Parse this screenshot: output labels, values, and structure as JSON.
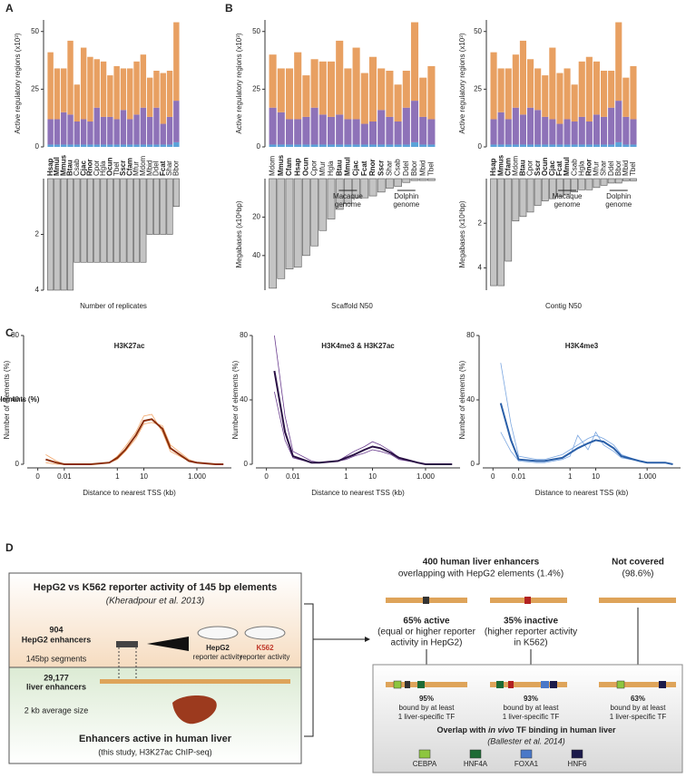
{
  "panel_labels": [
    "A",
    "B",
    "C",
    "D"
  ],
  "chart_data": [
    {
      "type": "stacked_bar",
      "ylabel": "Active regulatory regions (x10³)",
      "ylim": [
        0,
        55
      ],
      "yticks": [
        0,
        25,
        50
      ],
      "categories": [
        "Hsap",
        "Mmul",
        "Mmus",
        "Btau",
        "Csab",
        "Cjac",
        "Rnor",
        "Cpor",
        "Hgla",
        "Ocun",
        "Tbel",
        "Sscr",
        "Cfam",
        "Mfur",
        "Mdom",
        "Mbid",
        "Ddel",
        "Fcat",
        "Shar",
        "Bbor"
      ],
      "bold_categories": [
        0,
        1,
        2,
        3,
        5,
        6,
        9,
        11,
        12,
        17
      ],
      "bold_color": "#2b2f8f",
      "label_color": "#555555",
      "series": [
        {
          "color": "#5ba3d9",
          "values": [
            1,
            1,
            1,
            1,
            1,
            1,
            1,
            1,
            1,
            1,
            1,
            1,
            1,
            1,
            1,
            1,
            1,
            1,
            1,
            2
          ]
        },
        {
          "color": "#8e72b8",
          "values": [
            11,
            11,
            14,
            13,
            10,
            11,
            10,
            16,
            12,
            12,
            11,
            15,
            11,
            13,
            16,
            12,
            16,
            9,
            12,
            18
          ]
        },
        {
          "color": "#e8a062",
          "values": [
            29,
            22,
            19,
            32,
            16,
            31,
            28,
            21,
            24,
            18,
            23,
            18,
            22,
            23,
            23,
            17,
            16,
            22,
            20,
            34
          ]
        }
      ]
    },
    {
      "type": "bar",
      "y_reversed": true,
      "xlabel": "Number of replicates",
      "ylim": [
        0,
        4
      ],
      "yticks": [
        2,
        4
      ],
      "color": "#c4c4c4",
      "values": [
        4,
        4,
        4,
        4,
        3,
        3,
        3,
        3,
        3,
        3,
        3,
        3,
        3,
        3,
        3,
        2,
        2,
        2,
        2,
        1
      ]
    },
    {
      "type": "stacked_bar",
      "ylabel": "Active regulatory regions (x10³)",
      "ylim": [
        0,
        55
      ],
      "yticks": [
        0,
        25,
        50
      ],
      "categories": [
        "Mdom",
        "Mmus",
        "Cfam",
        "Hsap",
        "Ocun",
        "Cpor",
        "Mfur",
        "Hgla",
        "Btau",
        "Mmul",
        "Cjac",
        "Fcat",
        "Rnor",
        "Sscr",
        "Shar",
        "Csab",
        "Ddel",
        "Bbor",
        "Mbid",
        "Tbel"
      ],
      "bold_categories": [
        1,
        2,
        3,
        4,
        8,
        9,
        10,
        11,
        12,
        13
      ],
      "bold_color": "#2b2f8f",
      "label_color": "#555555",
      "series": [
        {
          "color": "#5ba3d9",
          "values": [
            1,
            1,
            1,
            1,
            1,
            1,
            1,
            1,
            1,
            1,
            1,
            1,
            1,
            1,
            1,
            1,
            1,
            2,
            1,
            1
          ]
        },
        {
          "color": "#8e72b8",
          "values": [
            16,
            14,
            11,
            11,
            12,
            16,
            13,
            12,
            13,
            11,
            11,
            9,
            10,
            15,
            12,
            10,
            16,
            18,
            12,
            11
          ]
        },
        {
          "color": "#e8a062",
          "values": [
            23,
            19,
            22,
            29,
            18,
            21,
            23,
            24,
            32,
            22,
            31,
            22,
            28,
            18,
            20,
            16,
            16,
            34,
            17,
            23
          ]
        }
      ]
    },
    {
      "type": "bar",
      "y_reversed": true,
      "xlabel": "Scaffold N50",
      "ylabel": "Megabases (x10⁶bp)",
      "ylim": [
        0,
        58
      ],
      "yticks": [
        20,
        40
      ],
      "color": "#c4c4c4",
      "values": [
        57,
        52,
        47,
        46,
        40,
        35,
        27,
        21,
        16,
        13,
        10,
        10,
        9,
        7,
        5,
        4,
        2,
        1,
        1,
        1
      ],
      "annotations": [
        {
          "lines": [
            "Macaque",
            "genome"
          ]
        },
        {
          "lines": [
            "Dolphin",
            "genome"
          ]
        }
      ]
    },
    {
      "type": "stacked_bar",
      "ylabel": "Active regulatory regions (x10³)",
      "ylim": [
        0,
        55
      ],
      "yticks": [
        0,
        25,
        50
      ],
      "categories": [
        "Hsap",
        "Mmus",
        "Cfam",
        "Mdom",
        "Btau",
        "Cpor",
        "Sscr",
        "Ocun",
        "Cjac",
        "Fcat",
        "Mmul",
        "Csab",
        "Hgla",
        "Rnor",
        "Mfur",
        "Shar",
        "Ddel",
        "Bbor",
        "Mbid",
        "Tbel"
      ],
      "bold_categories": [
        0,
        1,
        2,
        4,
        6,
        7,
        8,
        9,
        10,
        13
      ],
      "bold_color": "#2b2f8f",
      "label_color": "#555555",
      "series": [
        {
          "color": "#5ba3d9",
          "values": [
            1,
            1,
            1,
            1,
            1,
            1,
            1,
            1,
            1,
            1,
            1,
            1,
            1,
            1,
            1,
            1,
            1,
            2,
            1,
            1
          ]
        },
        {
          "color": "#8e72b8",
          "values": [
            11,
            14,
            11,
            16,
            13,
            16,
            15,
            12,
            11,
            9,
            11,
            10,
            12,
            10,
            13,
            12,
            16,
            18,
            12,
            11
          ]
        },
        {
          "color": "#e8a062",
          "values": [
            29,
            19,
            22,
            23,
            32,
            21,
            18,
            18,
            31,
            22,
            22,
            16,
            24,
            28,
            23,
            20,
            16,
            34,
            17,
            23
          ]
        }
      ]
    },
    {
      "type": "bar",
      "y_reversed": true,
      "xlabel": "Contig N50",
      "ylabel": "Megabases (x10⁶bp)",
      "ylim": [
        0,
        5
      ],
      "yticks": [
        2,
        4
      ],
      "color": "#c4c4c4",
      "values": [
        4.8,
        4.8,
        3.7,
        1.9,
        1.7,
        1.5,
        1.2,
        1.0,
        0.9,
        0.8,
        0.7,
        0.6,
        0.5,
        0.5,
        0.4,
        0.3,
        0.2,
        0.2,
        0.1,
        0.1
      ],
      "annotations": [
        {
          "lines": [
            "Macaque",
            "genome"
          ]
        },
        {
          "lines": [
            "Dolphin",
            "genome"
          ]
        }
      ]
    },
    {
      "type": "line",
      "title": "H3K27ac",
      "title_color": "#e07b39",
      "xscale": "log",
      "ylabel": "Number of elements (%)",
      "xlabel": "Distance to nearest TSS (kb)",
      "xlim": [
        0.0004,
        20000
      ],
      "xticks": [
        {
          "value": 0.001,
          "label": "0"
        },
        0.01,
        1,
        10,
        {
          "value": 1000,
          "label": "1.000"
        }
      ],
      "ylim": [
        0,
        80
      ],
      "yticks": [
        0,
        40,
        80
      ],
      "x": [
        0.002,
        0.005,
        0.01,
        0.05,
        0.1,
        0.5,
        1,
        2,
        5,
        10,
        20,
        50,
        100,
        500,
        1000,
        5000,
        10000
      ],
      "series": [
        {
          "color": "#f2a66a",
          "values": [
            6,
            2,
            0,
            0,
            0,
            1,
            5,
            11,
            20,
            30,
            31,
            20,
            8,
            2,
            1,
            0,
            0
          ]
        },
        {
          "color": "#f2a66a",
          "values": [
            1,
            0,
            0,
            0,
            0,
            1,
            3,
            8,
            16,
            25,
            26,
            24,
            12,
            3,
            1,
            0,
            0
          ]
        },
        {
          "color": "#8b2e0a",
          "values": [
            3,
            1,
            0,
            0,
            0,
            1,
            4,
            9,
            18,
            27,
            28,
            22,
            10,
            2,
            1,
            0,
            0
          ]
        }
      ]
    },
    {
      "type": "line",
      "title": "H3K4me3 & H3K27ac",
      "title_color": "#5b2d82",
      "xscale": "log",
      "ylabel": "Number of elements (%)",
      "xlabel": "Distance to nearest TSS (kb)",
      "xlim": [
        0.0004,
        20000
      ],
      "xticks": [
        {
          "value": 0.001,
          "label": "0"
        },
        0.01,
        1,
        10,
        {
          "value": 1000,
          "label": "1.000"
        }
      ],
      "ylim": [
        0,
        80
      ],
      "yticks": [
        0,
        40,
        80
      ],
      "x": [
        0.002,
        0.005,
        0.01,
        0.05,
        0.1,
        0.5,
        1,
        2,
        5,
        10,
        20,
        50,
        100,
        500,
        1000,
        5000,
        10000
      ],
      "series": [
        {
          "color": "#6b3d8f",
          "values": [
            80,
            30,
            8,
            2,
            1,
            2,
            5,
            8,
            11,
            14,
            12,
            8,
            4,
            1,
            0,
            0,
            0
          ]
        },
        {
          "color": "#6b3d8f",
          "values": [
            45,
            15,
            4,
            1,
            1,
            2,
            3,
            5,
            7,
            9,
            8,
            6,
            3,
            1,
            0,
            0,
            0
          ]
        },
        {
          "color": "#2a1045",
          "values": [
            58,
            20,
            5,
            1,
            1,
            2,
            4,
            6,
            9,
            11,
            10,
            7,
            4,
            1,
            0,
            0,
            0
          ]
        }
      ]
    },
    {
      "type": "line",
      "title": "H3K4me3",
      "title_color": "#4a7cc7",
      "xscale": "log",
      "ylabel": "Number of elements (%)",
      "xlabel": "Distance to nearest TSS (kb)",
      "xlim": [
        0.0004,
        20000
      ],
      "xticks": [
        {
          "value": 0.001,
          "label": "0"
        },
        0.01,
        1,
        10,
        {
          "value": 1000,
          "label": "1.000"
        }
      ],
      "ylim": [
        0,
        80
      ],
      "yticks": [
        0,
        40,
        80
      ],
      "x": [
        0.002,
        0.005,
        0.01,
        0.05,
        0.1,
        0.5,
        1,
        2,
        5,
        10,
        20,
        50,
        100,
        500,
        1000,
        5000,
        10000
      ],
      "series": [
        {
          "color": "#7aa6e0",
          "values": [
            63,
            25,
            5,
            3,
            3,
            6,
            9,
            12,
            16,
            18,
            16,
            12,
            6,
            2,
            1,
            1,
            0
          ]
        },
        {
          "color": "#7aa6e0",
          "values": [
            20,
            8,
            2,
            1,
            1,
            3,
            5,
            18,
            9,
            20,
            12,
            8,
            4,
            2,
            1,
            1,
            0
          ]
        },
        {
          "color": "#2a5fa8",
          "values": [
            38,
            15,
            3,
            2,
            2,
            4,
            7,
            10,
            13,
            15,
            14,
            10,
            5,
            2,
            1,
            1,
            0
          ]
        }
      ]
    }
  ],
  "diagram": {
    "left_box": {
      "title": "HepG2 vs K562 reporter activity of 145 bp elements",
      "citation": "(Kheradpour et al. 2013)",
      "count": "904",
      "count_label": "HepG2 enhancers",
      "segment_label": "145bp segments",
      "hepg2_dish": [
        "HepG2",
        "reporter activity"
      ],
      "k562_dish": [
        "K562",
        "reporter activity"
      ]
    },
    "liver_box": {
      "count": "29,177",
      "count_label": "liver enhancers",
      "size_label": "2 kb average size",
      "title": "Enhancers active in human liver",
      "citation": "(this study, H3K27ac ChIP-seq)"
    },
    "overlap": {
      "title": "400 human liver enhancers",
      "subtitle": "overlapping with HepG2 elements (1.4%)"
    },
    "not_covered": {
      "title": "Not covered",
      "subtitle": "(98.6%)"
    },
    "active": {
      "title": "65% active",
      "lines": [
        "(equal or higher reporter",
        "activity in HepG2)"
      ]
    },
    "inactive": {
      "title": "35% inactive",
      "lines": [
        "(higher reporter activity",
        "in K562)"
      ]
    },
    "bound": [
      {
        "percent": "95%",
        "lines": [
          "bound by at least",
          "1 liver-specific TF"
        ]
      },
      {
        "percent": "93%",
        "lines": [
          "bound by at least",
          "1 liver-specific TF"
        ]
      },
      {
        "percent": "63%",
        "lines": [
          "bound by at least",
          "1 liver-specific TF"
        ]
      }
    ],
    "tf_box": {
      "title_parts": [
        "Overlap with ",
        "in vivo",
        " TF binding in human liver"
      ],
      "citation": "(Ballester et al. 2014)",
      "legend": [
        {
          "name": "CEBPA",
          "color": "#8dc63f"
        },
        {
          "name": "HNF4A",
          "color": "#1e6b35"
        },
        {
          "name": "FOXA1",
          "color": "#4a78c8"
        },
        {
          "name": "HNF6",
          "color": "#1c1a4a"
        }
      ]
    }
  }
}
